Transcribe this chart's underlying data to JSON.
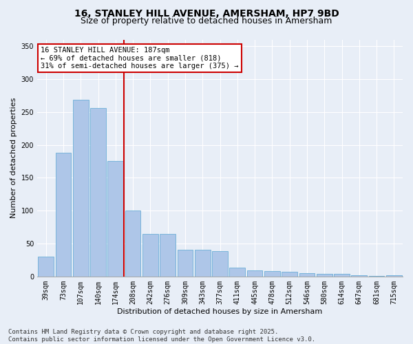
{
  "title_line1": "16, STANLEY HILL AVENUE, AMERSHAM, HP7 9BD",
  "title_line2": "Size of property relative to detached houses in Amersham",
  "xlabel": "Distribution of detached houses by size in Amersham",
  "ylabel": "Number of detached properties",
  "categories": [
    "39sqm",
    "73sqm",
    "107sqm",
    "140sqm",
    "174sqm",
    "208sqm",
    "242sqm",
    "276sqm",
    "309sqm",
    "343sqm",
    "377sqm",
    "411sqm",
    "445sqm",
    "478sqm",
    "512sqm",
    "546sqm",
    "580sqm",
    "614sqm",
    "647sqm",
    "681sqm",
    "715sqm"
  ],
  "values": [
    30,
    188,
    269,
    256,
    175,
    100,
    65,
    65,
    41,
    41,
    38,
    13,
    9,
    8,
    7,
    5,
    4,
    4,
    2,
    1,
    2
  ],
  "bar_color": "#aec6e8",
  "bar_edge_color": "#6baed6",
  "vline_color": "#cc0000",
  "annotation_text": "16 STANLEY HILL AVENUE: 187sqm\n← 69% of detached houses are smaller (818)\n31% of semi-detached houses are larger (375) →",
  "annotation_box_color": "#ffffff",
  "annotation_box_edge_color": "#cc0000",
  "ylim": [
    0,
    360
  ],
  "yticks": [
    0,
    50,
    100,
    150,
    200,
    250,
    300,
    350
  ],
  "background_color": "#e8eef7",
  "grid_color": "#ffffff",
  "footnote": "Contains HM Land Registry data © Crown copyright and database right 2025.\nContains public sector information licensed under the Open Government Licence v3.0.",
  "title_fontsize": 10,
  "subtitle_fontsize": 9,
  "axis_label_fontsize": 8,
  "tick_fontsize": 7,
  "annotation_fontsize": 7.5,
  "footnote_fontsize": 6.5,
  "vline_x_index": 4.5
}
